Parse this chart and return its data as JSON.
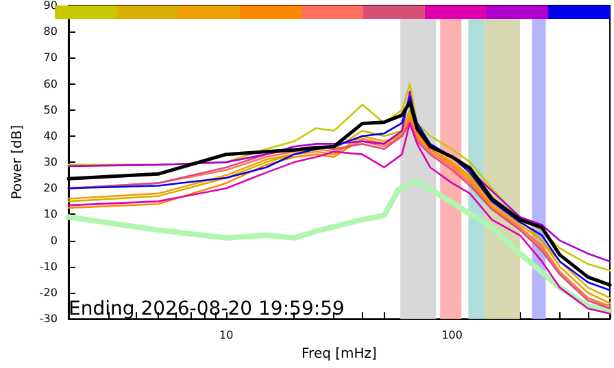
{
  "chart_data": {
    "type": "line",
    "xlabel": "Freq [mHz]",
    "ylabel": "Power [dB]",
    "annotations": [
      "Ending 2026-08-20 19:59:59"
    ],
    "log": "x",
    "grid": false,
    "marker": "none",
    "line_style": "solid",
    "xlim": [
      2,
      500
    ],
    "ylim": [
      -30,
      90
    ],
    "xticks": [
      {
        "value": 2,
        "label": null
      },
      {
        "value": 3,
        "label": null
      },
      {
        "value": 4,
        "label": null
      },
      {
        "value": 5,
        "label": null
      },
      {
        "value": 6,
        "label": null
      },
      {
        "value": 7,
        "label": null
      },
      {
        "value": 8,
        "label": null
      },
      {
        "value": 9,
        "label": null
      },
      10,
      {
        "value": 20,
        "label": null
      },
      {
        "value": 30,
        "label": null
      },
      {
        "value": 40,
        "label": null
      },
      {
        "value": 50,
        "label": null
      },
      {
        "value": 60,
        "label": null
      },
      {
        "value": 70,
        "label": null
      },
      {
        "value": 80,
        "label": null
      },
      {
        "value": 90,
        "label": null
      },
      100,
      {
        "value": 200,
        "label": null
      },
      {
        "value": 300,
        "label": null
      },
      {
        "value": 400,
        "label": null
      },
      {
        "value": 500,
        "label": null
      }
    ],
    "yticks": [
      -30,
      -20,
      -10,
      0,
      10,
      20,
      30,
      40,
      50,
      60,
      70,
      80,
      90
    ],
    "x": [
      2,
      5,
      10,
      15,
      20,
      25,
      30,
      40,
      50,
      60,
      65,
      70,
      80,
      100,
      120,
      150,
      200,
      250,
      300,
      400,
      500
    ],
    "series": [
      {
        "color": "#c8c800",
        "values": [
          29,
          29,
          30,
          35,
          38,
          43,
          42,
          52,
          45,
          50,
          60,
          45,
          40,
          35,
          30,
          20,
          8,
          4,
          -3,
          -9,
          -11.5
        ]
      },
      {
        "color": "#d8b000",
        "values": [
          15,
          17,
          24,
          30,
          33,
          36,
          35,
          42,
          40,
          42,
          50,
          40,
          35,
          30,
          25,
          15,
          8,
          0,
          -8,
          -18,
          -22
        ]
      },
      {
        "color": "#f0a000",
        "values": [
          16,
          18,
          25,
          31,
          33,
          34,
          33,
          40,
          38,
          40,
          48,
          40,
          35,
          30,
          24,
          14,
          6,
          0,
          -10,
          -20,
          -24
        ]
      },
      {
        "color": "#ff8800",
        "values": [
          12.5,
          14,
          22,
          29,
          32,
          33,
          32,
          39,
          37,
          41,
          47,
          41,
          35,
          29,
          23,
          13,
          5,
          -2,
          -12,
          -22,
          -26
        ]
      },
      {
        "color": "#ff7060",
        "values": [
          20,
          22,
          27,
          32,
          34,
          35,
          34,
          38,
          36,
          40,
          46,
          39,
          34,
          28,
          22,
          12,
          5,
          -3,
          -12,
          -22,
          -25
        ]
      },
      {
        "color": "#d85078",
        "values": [
          20,
          22,
          28,
          33,
          35,
          36,
          35,
          37,
          35,
          40,
          45,
          38,
          33,
          27,
          21,
          12,
          4,
          -4,
          -13,
          -23,
          -26
        ]
      },
      {
        "color": "#e000b0",
        "values": [
          13.5,
          15,
          20,
          26,
          30,
          32,
          34,
          33,
          28,
          33,
          45,
          37,
          28,
          22,
          18,
          8,
          2,
          -8,
          -18,
          -26,
          -28
        ]
      },
      {
        "color": "#b000d0",
        "values": [
          28.5,
          29,
          30,
          33,
          36,
          37,
          37,
          38,
          37,
          42,
          57,
          42,
          36,
          32,
          27,
          19,
          9,
          6,
          0,
          -5,
          -8
        ]
      },
      {
        "color": "#0000ee",
        "values": [
          20,
          21,
          24,
          28,
          33,
          35,
          36,
          40,
          41,
          45,
          55,
          45,
          37,
          32,
          26,
          15,
          7,
          2,
          -8,
          -16,
          -19
        ]
      },
      {
        "color": "#000000",
        "values": [
          23.7,
          25.5,
          33,
          34,
          34.7,
          35.5,
          36,
          44.8,
          45.3,
          48,
          53,
          43,
          36,
          32,
          27.7,
          16,
          8,
          5,
          -5.5,
          -14,
          -17
        ]
      },
      {
        "color": "#b0f5b0",
        "x": [
          2,
          5,
          10,
          15,
          20,
          25,
          40,
          50,
          58,
          70,
          90,
          150,
          200,
          300,
          400,
          500
        ],
        "values": [
          9,
          4,
          1,
          2,
          1,
          3.6,
          8,
          9.6,
          19.6,
          22.7,
          17,
          5,
          -5,
          -18,
          -25,
          -27
        ]
      }
    ],
    "bands": [
      {
        "axis": "x",
        "from": 59,
        "to": 85,
        "color": "#d8d8d8"
      },
      {
        "axis": "x",
        "from": 88.5,
        "to": 110,
        "color": "#ffb0b0"
      },
      {
        "axis": "x",
        "from": 118,
        "to": 139,
        "color": "#b0dcdc"
      },
      {
        "axis": "x",
        "from": 139,
        "to": 200,
        "color": "#d8d8b0"
      },
      {
        "axis": "x",
        "from": 226,
        "to": 260,
        "color": "#b4b4ff"
      }
    ]
  }
}
